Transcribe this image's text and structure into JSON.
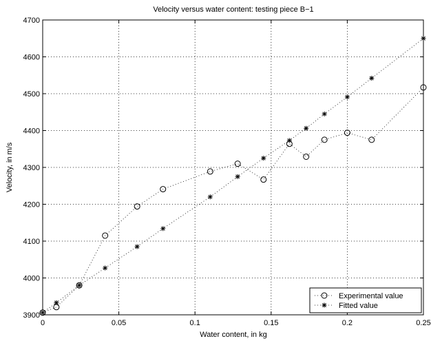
{
  "chart_data": {
    "type": "line",
    "title": "Velocity versus water content: testing piece B−1",
    "xlabel": "Water content, in kg",
    "ylabel": "Velocity, in m/s",
    "xlim": [
      0,
      0.25
    ],
    "ylim": [
      3900,
      4700
    ],
    "xticks": [
      0,
      0.05,
      0.1,
      0.15,
      0.2,
      0.25
    ],
    "xtick_labels": [
      "0",
      "0.05",
      "0.1",
      "0.15",
      "0.2",
      "0.25"
    ],
    "yticks": [
      3900,
      4000,
      4100,
      4200,
      4300,
      4400,
      4500,
      4600,
      4700
    ],
    "ytick_labels": [
      "3900",
      "4000",
      "4100",
      "4200",
      "4300",
      "4400",
      "4500",
      "4600",
      "4700"
    ],
    "grid": true,
    "legend_position": "bottom-right",
    "series": [
      {
        "name": "Experimental value",
        "marker": "circle",
        "x": [
          0,
          0.009,
          0.024,
          0.041,
          0.062,
          0.079,
          0.11,
          0.128,
          0.145,
          0.162,
          0.173,
          0.185,
          0.2,
          0.216,
          0.25
        ],
        "y": [
          3906,
          3921,
          3980,
          4115,
          4194,
          4241,
          4289,
          4310,
          4267,
          4364,
          4329,
          4375,
          4394,
          4375,
          4517
        ]
      },
      {
        "name": "Fitted value",
        "marker": "star",
        "x": [
          0,
          0.009,
          0.024,
          0.041,
          0.062,
          0.079,
          0.11,
          0.128,
          0.145,
          0.162,
          0.173,
          0.185,
          0.2,
          0.216,
          0.25
        ],
        "y": [
          3906,
          3933,
          3980,
          4027,
          4085,
          4134,
          4220,
          4275,
          4325,
          4373,
          4406,
          4445,
          4491,
          4542,
          4650
        ]
      }
    ]
  }
}
